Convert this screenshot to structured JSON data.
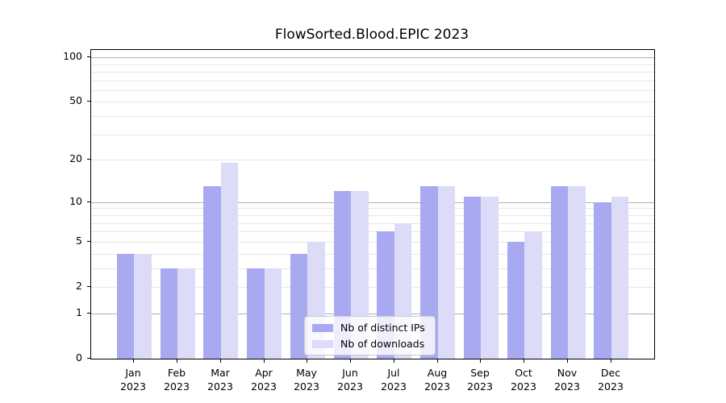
{
  "chart_data": {
    "type": "bar",
    "title": "FlowSorted.Blood.EPIC 2023",
    "categories": [
      "Jan",
      "Feb",
      "Mar",
      "Apr",
      "May",
      "Jun",
      "Jul",
      "Aug",
      "Sep",
      "Oct",
      "Nov",
      "Dec"
    ],
    "category_year": "2023",
    "series": [
      {
        "name": "Nb of distinct IPs",
        "color": "#a9a9f2",
        "values": [
          4,
          3,
          13,
          3,
          4,
          12,
          6,
          13,
          11,
          5,
          13,
          10
        ]
      },
      {
        "name": "Nb of downloads",
        "color": "#dcdcf8",
        "values": [
          4,
          3,
          19,
          3,
          5,
          12,
          7,
          13,
          11,
          6,
          13,
          11
        ]
      }
    ],
    "yscale": "log1p",
    "y_ticks": [
      0,
      1,
      2,
      5,
      10,
      20,
      50,
      100
    ],
    "y_major_gridlines": [
      1,
      10,
      100
    ],
    "y_minor_gridlines": [
      3,
      4,
      6,
      7,
      8,
      9,
      30,
      40,
      60,
      70,
      80,
      90
    ],
    "ylim": [
      0,
      112
    ],
    "xlabel": "",
    "ylabel": "",
    "grid": true,
    "legend_position": "lower center",
    "colors": {
      "major_grid": "#b1b1b1",
      "minor_grid": "#e7e7e7",
      "spine": "#000000",
      "text": "#000000",
      "background": "#ffffff"
    }
  }
}
